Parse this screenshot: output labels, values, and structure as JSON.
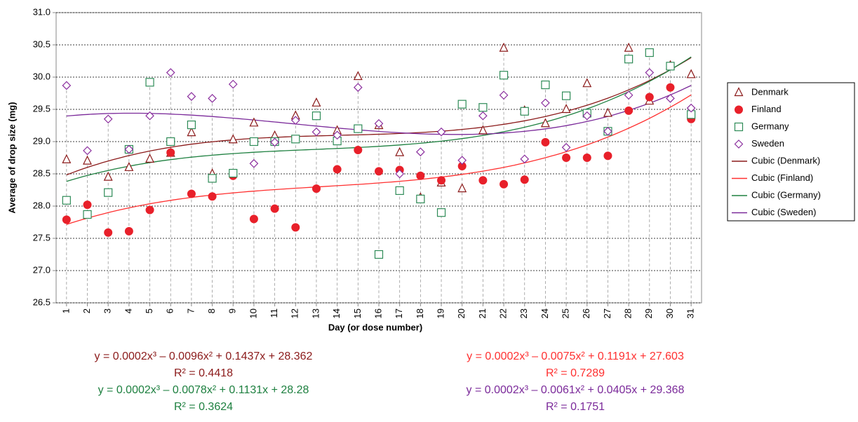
{
  "chart_data": {
    "type": "scatter",
    "x_label": "Day (or dose number)",
    "y_label": "Average of drop size (mg)",
    "x": [
      1,
      2,
      3,
      4,
      5,
      6,
      7,
      8,
      9,
      10,
      11,
      12,
      13,
      14,
      15,
      16,
      17,
      18,
      19,
      20,
      21,
      22,
      23,
      24,
      25,
      26,
      27,
      28,
      29,
      30,
      31
    ],
    "xlim": [
      0.5,
      31.5
    ],
    "xticks": [
      1,
      2,
      3,
      4,
      5,
      6,
      7,
      8,
      9,
      10,
      11,
      12,
      13,
      14,
      15,
      16,
      17,
      18,
      19,
      20,
      21,
      22,
      23,
      24,
      25,
      26,
      27,
      28,
      29,
      30,
      31
    ],
    "ylim": [
      26.5,
      31.0
    ],
    "yticks": [
      26.5,
      {
        "value": 27,
        "label": "27.0"
      },
      27.5,
      {
        "value": 28,
        "label": "28.0"
      },
      28.5,
      {
        "value": 29,
        "label": "29.0"
      },
      29.5,
      {
        "value": 30,
        "label": "30.0"
      },
      30.5,
      {
        "value": 31,
        "label": "31.0"
      }
    ],
    "grid": true,
    "legend": "right",
    "series": [
      {
        "name": "Denmark",
        "color": "#8b1a1a",
        "marker": "triangle",
        "values": [
          28.72,
          28.7,
          28.45,
          28.6,
          28.73,
          28.82,
          29.14,
          28.5,
          29.03,
          29.29,
          29.09,
          29.4,
          29.6,
          29.17,
          30.01,
          29.25,
          28.83,
          28.13,
          28.36,
          28.27,
          29.17,
          30.45,
          29.48,
          29.28,
          29.5,
          29.9,
          29.44,
          30.45,
          29.63,
          30.18,
          30.04
        ]
      },
      {
        "name": "Finland",
        "color": "#e8202a",
        "marker": "circle",
        "values": [
          27.79,
          28.02,
          27.59,
          27.61,
          27.94,
          28.83,
          28.19,
          28.15,
          28.47,
          27.8,
          27.96,
          27.67,
          28.27,
          28.57,
          28.87,
          28.54,
          28.56,
          28.47,
          28.4,
          28.62,
          28.4,
          28.34,
          28.41,
          28.99,
          28.75,
          28.75,
          28.78,
          29.48,
          29.69,
          29.84,
          29.35
        ]
      },
      {
        "name": "Germany",
        "color": "#2e8b57",
        "marker": "square",
        "values": [
          28.09,
          27.87,
          28.21,
          28.88,
          29.92,
          29.0,
          29.26,
          28.43,
          28.51,
          29.0,
          29.0,
          29.04,
          29.4,
          29.01,
          29.2,
          27.25,
          28.24,
          28.11,
          27.9,
          29.58,
          29.53,
          30.03,
          29.47,
          29.88,
          29.71,
          29.44,
          29.16,
          30.28,
          30.38,
          30.17,
          29.42
        ]
      },
      {
        "name": "Sweden",
        "color": "#8b2f9e",
        "marker": "diamond",
        "values": [
          29.87,
          28.86,
          29.35,
          28.88,
          29.4,
          30.07,
          29.7,
          29.67,
          29.89,
          28.66,
          28.99,
          29.33,
          29.15,
          29.1,
          29.84,
          29.28,
          28.5,
          28.84,
          29.15,
          28.71,
          29.4,
          29.72,
          28.73,
          29.6,
          28.91,
          29.4,
          29.16,
          29.72,
          30.07,
          29.67,
          29.52
        ]
      }
    ],
    "trendlines": [
      {
        "name": "Cubic (Denmark)",
        "color": "#8b1a1a",
        "equation": "y = 0.0002x³ – 0.0096x² + 0.1437x + 28.362",
        "r2": "R² = 0.4418"
      },
      {
        "name": "Cubic (Finland)",
        "color": "#ff3030",
        "equation": "y = 0.0002x³ – 0.0075x² + 0.1191x + 27.603",
        "r2": "R² = 0.7289"
      },
      {
        "name": "Cubic (Germany)",
        "color": "#1e8040",
        "equation": "y = 0.0002x³ – 0.0078x² + 0.1131x + 28.28",
        "r2": "R²  = 0.3624"
      },
      {
        "name": "Cubic (Sweden)",
        "color": "#7b2a9a",
        "equation": "y = 0.0002x³ – 0.0061x² + 0.0405x + 29.368",
        "r2": "R² = 0.1751"
      }
    ]
  }
}
